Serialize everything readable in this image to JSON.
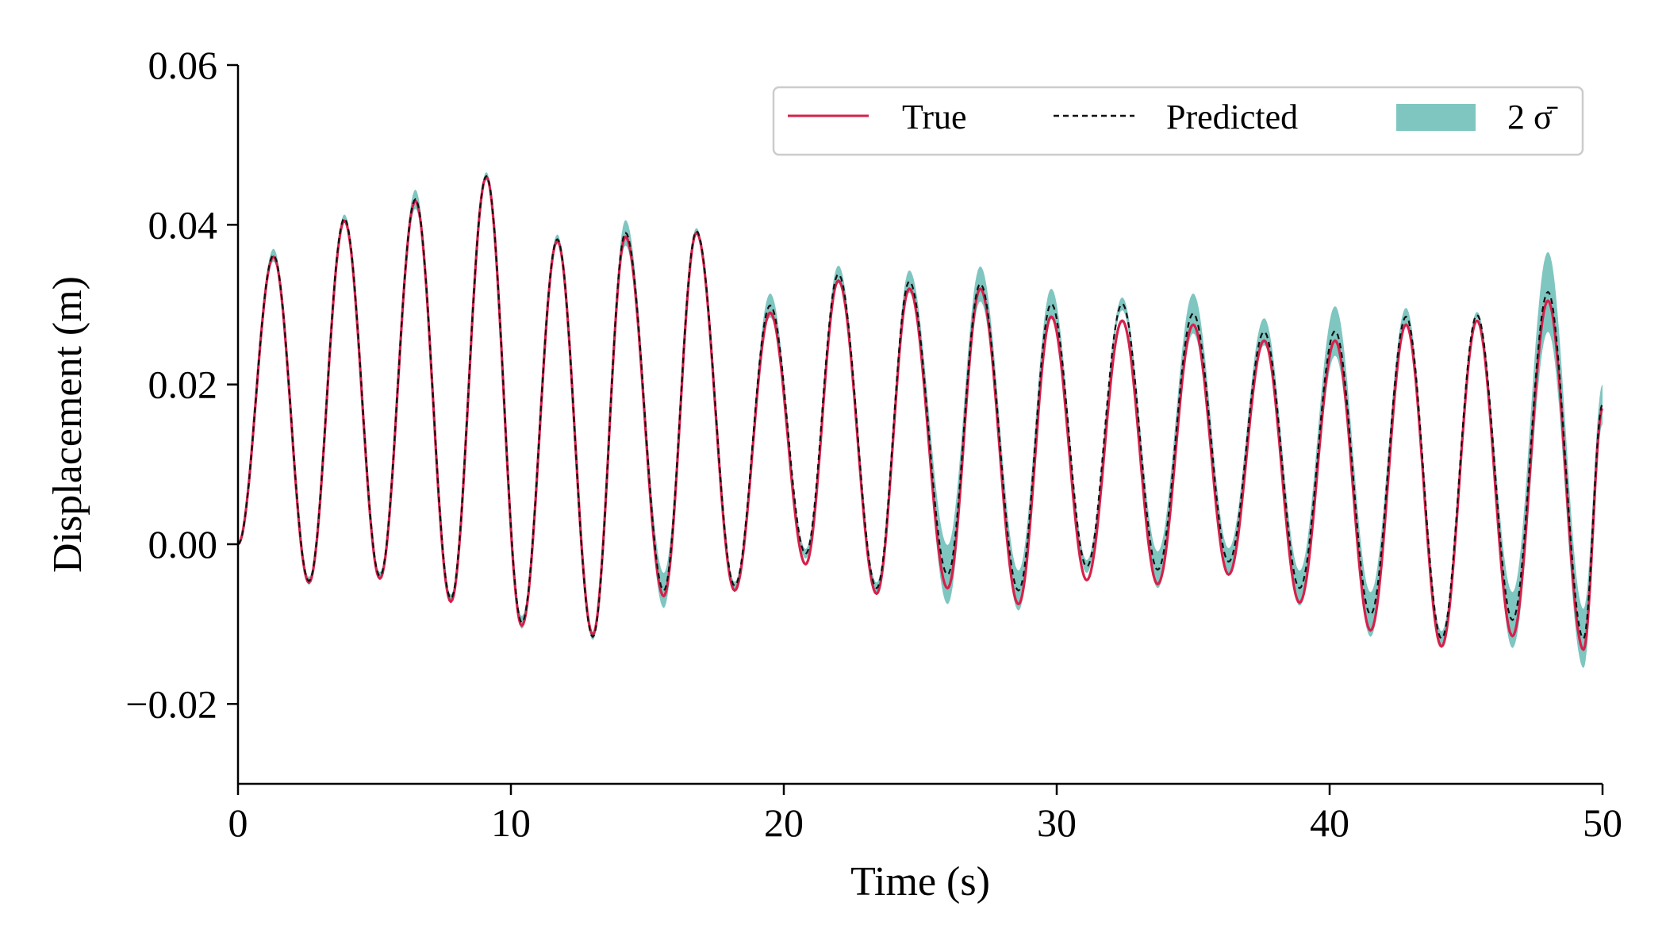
{
  "chart_data": {
    "type": "line",
    "title": "",
    "xlabel": "Time (s)",
    "ylabel": "Displacement (m)",
    "xlim": [
      0,
      50
    ],
    "ylim": [
      -0.03,
      0.06
    ],
    "xticks": [
      0,
      10,
      20,
      30,
      40,
      50
    ],
    "xtick_labels": [
      "0",
      "10",
      "20",
      "30",
      "40",
      "50"
    ],
    "yticks": [
      -0.02,
      0.0,
      0.02,
      0.04,
      0.06
    ],
    "ytick_labels": [
      "−0.02",
      "0.00",
      "0.02",
      "0.04",
      "0.06"
    ],
    "grid": false,
    "legend_position": "top-right",
    "legend": [
      {
        "label": "True",
        "style": "solid",
        "color": "#d6204a"
      },
      {
        "label": "Predicted",
        "style": "dashed",
        "color": "#111111"
      },
      {
        "label": "2 σ̄",
        "style": "band",
        "color": "#7fc6c1"
      }
    ],
    "series": [
      {
        "name": "True",
        "color": "#d6204a",
        "peaks": [
          [
            1.3,
            0.036
          ],
          [
            3.9,
            0.0405
          ],
          [
            6.5,
            0.043
          ],
          [
            9.1,
            0.046
          ],
          [
            11.7,
            0.038
          ],
          [
            14.2,
            0.0385
          ],
          [
            16.8,
            0.039
          ],
          [
            19.5,
            0.029
          ],
          [
            22.0,
            0.033
          ],
          [
            24.6,
            0.032
          ],
          [
            27.2,
            0.032
          ],
          [
            29.8,
            0.0285
          ],
          [
            32.4,
            0.028
          ],
          [
            35.0,
            0.0275
          ],
          [
            37.6,
            0.0255
          ],
          [
            40.2,
            0.0255
          ],
          [
            42.8,
            0.0275
          ],
          [
            45.4,
            0.028
          ],
          [
            48.0,
            0.0305
          ]
        ],
        "troughs": [
          [
            2.6,
            -0.0048
          ],
          [
            5.2,
            -0.0043
          ],
          [
            7.8,
            -0.0072
          ],
          [
            10.4,
            -0.0102
          ],
          [
            13.0,
            -0.0113
          ],
          [
            15.6,
            -0.0065
          ],
          [
            18.2,
            -0.0058
          ],
          [
            20.8,
            -0.0025
          ],
          [
            23.4,
            -0.0062
          ],
          [
            26.0,
            -0.0055
          ],
          [
            28.6,
            -0.0075
          ],
          [
            31.1,
            -0.0045
          ],
          [
            33.7,
            -0.005
          ],
          [
            36.3,
            -0.0038
          ],
          [
            38.9,
            -0.0073
          ],
          [
            41.5,
            -0.0108
          ],
          [
            44.1,
            -0.0128
          ],
          [
            46.7,
            -0.0115
          ],
          [
            49.3,
            -0.0132
          ]
        ],
        "start": [
          0.0,
          0.0
        ],
        "end": [
          50.0,
          0.017
        ]
      },
      {
        "name": "Predicted",
        "color": "#111111",
        "peaks": [
          [
            1.3,
            0.0362
          ],
          [
            3.9,
            0.0408
          ],
          [
            6.5,
            0.0432
          ],
          [
            9.1,
            0.0461
          ],
          [
            11.7,
            0.0382
          ],
          [
            14.2,
            0.039
          ],
          [
            16.8,
            0.0392
          ],
          [
            19.5,
            0.0299
          ],
          [
            22.0,
            0.0338
          ],
          [
            24.6,
            0.0329
          ],
          [
            27.2,
            0.0326
          ],
          [
            29.8,
            0.0301
          ],
          [
            32.4,
            0.0301
          ],
          [
            35.0,
            0.0289
          ],
          [
            37.6,
            0.0266
          ],
          [
            40.2,
            0.0267
          ],
          [
            42.8,
            0.0285
          ],
          [
            45.4,
            0.0287
          ],
          [
            48.0,
            0.0316
          ]
        ],
        "troughs": [
          [
            2.6,
            -0.0046
          ],
          [
            5.2,
            -0.004
          ],
          [
            7.8,
            -0.0068
          ],
          [
            10.4,
            -0.0098
          ],
          [
            13.0,
            -0.0116
          ],
          [
            15.6,
            -0.0058
          ],
          [
            18.2,
            -0.0052
          ],
          [
            20.8,
            -0.0012
          ],
          [
            23.4,
            -0.0055
          ],
          [
            26.0,
            -0.0038
          ],
          [
            28.6,
            -0.0058
          ],
          [
            31.1,
            -0.0028
          ],
          [
            33.7,
            -0.0032
          ],
          [
            36.3,
            -0.0022
          ],
          [
            38.9,
            -0.0055
          ],
          [
            41.5,
            -0.0088
          ],
          [
            44.1,
            -0.0118
          ],
          [
            46.7,
            -0.0095
          ],
          [
            49.3,
            -0.0118
          ]
        ],
        "start": [
          0.0,
          0.0
        ],
        "end": [
          50.0,
          0.0175
        ]
      }
    ],
    "band": {
      "name": "2 σ̄",
      "color": "#7fc6c1",
      "peak_halfwidth": [
        0.0008,
        0.0005,
        0.0012,
        0.0005,
        0.0006,
        0.0016,
        0.0004,
        0.0015,
        0.0011,
        0.0014,
        0.0022,
        0.0019,
        0.0008,
        0.0025,
        0.0017,
        0.0031,
        0.0011,
        0.0004,
        0.005
      ],
      "trough_halfwidth": [
        0.0005,
        0.0005,
        0.0005,
        0.0008,
        0.0004,
        0.0022,
        0.0005,
        0.0006,
        0.0007,
        0.0037,
        0.0025,
        0.0008,
        0.0023,
        0.0017,
        0.0022,
        0.0028,
        0.0009,
        0.0035,
        0.0037
      ]
    }
  }
}
